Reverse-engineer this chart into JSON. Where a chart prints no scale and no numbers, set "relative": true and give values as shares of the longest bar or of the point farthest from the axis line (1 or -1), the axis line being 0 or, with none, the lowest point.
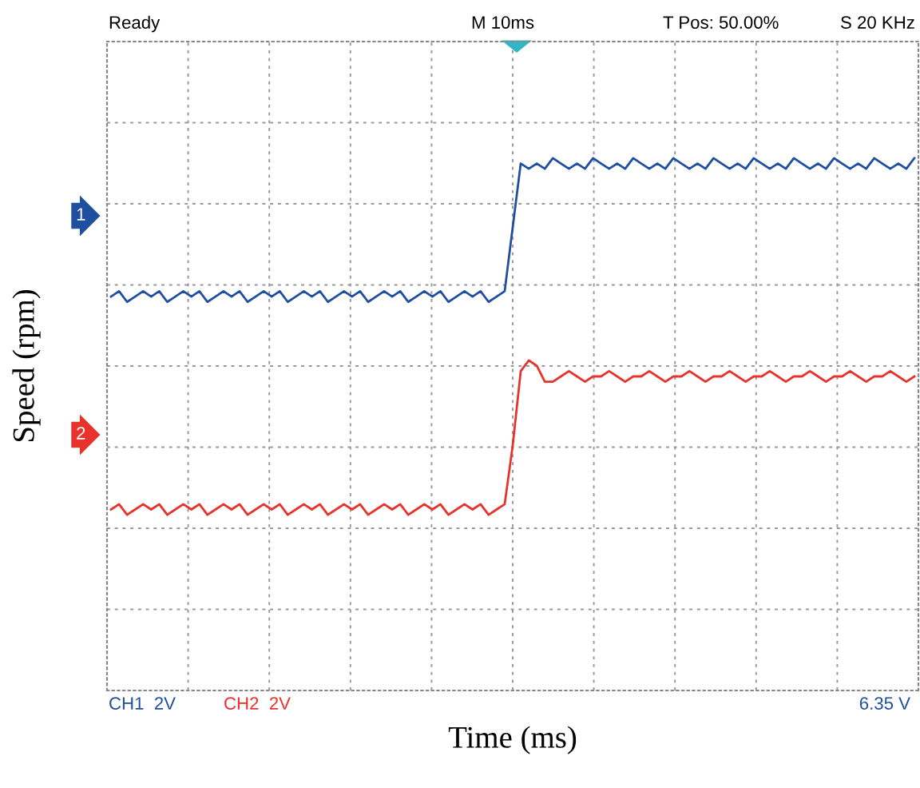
{
  "chart_data": {
    "type": "line",
    "relative": true,
    "xlabel": "Time (ms)",
    "ylabel": "Speed (rpm)",
    "grid": true,
    "line_style": "solid",
    "marker": "none",
    "categories": [
      null,
      null,
      null,
      null,
      null,
      null,
      null,
      null,
      null,
      null,
      null,
      null,
      null,
      null,
      null,
      null,
      null,
      null,
      null,
      null,
      null,
      null,
      null,
      null,
      null,
      null,
      null,
      null,
      null,
      null,
      null,
      null,
      null,
      null,
      null,
      null,
      null,
      null,
      null,
      null,
      null,
      null,
      null,
      null,
      null,
      null,
      null,
      null,
      null,
      null,
      null,
      null,
      null,
      null,
      null,
      null,
      null,
      null,
      null,
      null,
      null,
      null,
      null,
      null,
      null,
      null,
      null,
      null,
      null,
      null,
      null,
      null,
      null,
      null,
      null,
      null,
      null,
      null,
      null,
      null,
      null,
      null,
      null,
      null,
      null,
      null,
      null,
      null,
      null,
      null,
      null,
      null,
      null,
      null,
      null,
      null,
      null,
      null,
      null,
      null,
      null
    ],
    "series": [
      {
        "color": "#1f4f9e",
        "values": [
          0.74,
          0.75,
          0.73,
          0.74,
          0.75,
          0.74,
          0.75,
          0.73,
          0.74,
          0.75,
          0.74,
          0.75,
          0.73,
          0.74,
          0.75,
          0.74,
          0.75,
          0.73,
          0.74,
          0.75,
          0.74,
          0.75,
          0.73,
          0.74,
          0.75,
          0.74,
          0.75,
          0.73,
          0.74,
          0.75,
          0.74,
          0.75,
          0.73,
          0.74,
          0.75,
          0.74,
          0.75,
          0.73,
          0.74,
          0.75,
          0.74,
          0.75,
          0.73,
          0.74,
          0.75,
          0.74,
          0.75,
          0.73,
          0.74,
          0.75,
          0.87,
          0.99,
          0.98,
          0.99,
          0.98,
          1.0,
          0.99,
          0.98,
          0.99,
          0.98,
          1.0,
          0.99,
          0.98,
          0.99,
          0.98,
          1.0,
          0.99,
          0.98,
          0.99,
          0.98,
          1.0,
          0.99,
          0.98,
          0.99,
          0.98,
          1.0,
          0.99,
          0.98,
          0.99,
          0.98,
          1.0,
          0.99,
          0.98,
          0.99,
          0.98,
          1.0,
          0.99,
          0.98,
          0.99,
          0.98,
          1.0,
          0.99,
          0.98,
          0.99,
          0.98,
          1.0,
          0.99,
          0.98,
          0.99,
          0.98,
          1.0
        ]
      },
      {
        "color": "#e8322c",
        "values": [
          0.34,
          0.35,
          0.33,
          0.34,
          0.35,
          0.34,
          0.35,
          0.33,
          0.34,
          0.35,
          0.34,
          0.35,
          0.33,
          0.34,
          0.35,
          0.34,
          0.35,
          0.33,
          0.34,
          0.35,
          0.34,
          0.35,
          0.33,
          0.34,
          0.35,
          0.34,
          0.35,
          0.33,
          0.34,
          0.35,
          0.34,
          0.35,
          0.33,
          0.34,
          0.35,
          0.34,
          0.35,
          0.33,
          0.34,
          0.35,
          0.34,
          0.35,
          0.33,
          0.34,
          0.35,
          0.34,
          0.35,
          0.33,
          0.34,
          0.35,
          0.46,
          0.6,
          0.62,
          0.61,
          0.58,
          0.58,
          0.59,
          0.6,
          0.59,
          0.58,
          0.59,
          0.59,
          0.6,
          0.59,
          0.58,
          0.59,
          0.59,
          0.6,
          0.59,
          0.58,
          0.59,
          0.59,
          0.6,
          0.59,
          0.58,
          0.59,
          0.59,
          0.6,
          0.59,
          0.58,
          0.59,
          0.59,
          0.6,
          0.59,
          0.58,
          0.59,
          0.59,
          0.6,
          0.59,
          0.58,
          0.59,
          0.59,
          0.6,
          0.59,
          0.58,
          0.59,
          0.59,
          0.6,
          0.59,
          0.58,
          0.59
        ]
      }
    ],
    "annotations": [
      "Ready",
      "M 10ms",
      "T Pos: 50.00%",
      "S 20 KHz",
      "CH1  2V",
      "CH2  2V",
      "6.35 V",
      "1",
      "2"
    ]
  }
}
